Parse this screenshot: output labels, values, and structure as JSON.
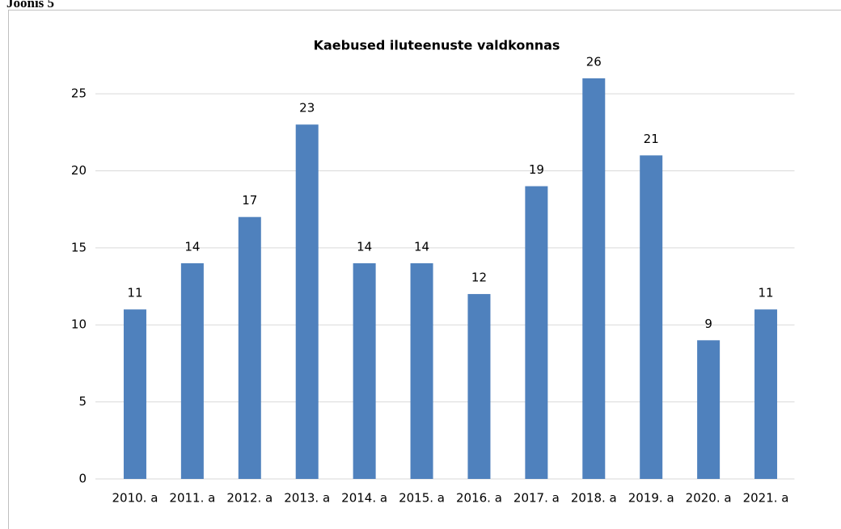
{
  "caption": "Joonis 5",
  "chart_data": {
    "type": "bar",
    "title": "Kaebused iluteenuste valdkonnas",
    "categories": [
      "2010. a",
      "2011. a",
      "2012. a",
      "2013. a",
      "2014. a",
      "2015. a",
      "2016. a",
      "2017. a",
      "2018. a",
      "2019. a",
      "2020. a",
      "2021. a"
    ],
    "values": [
      11,
      14,
      17,
      23,
      14,
      14,
      12,
      19,
      26,
      21,
      9,
      11
    ],
    "color": "#4f81bd",
    "ylim": [
      0,
      26
    ],
    "yticks": [
      0,
      5,
      10,
      15,
      20,
      25
    ],
    "grid": true
  }
}
